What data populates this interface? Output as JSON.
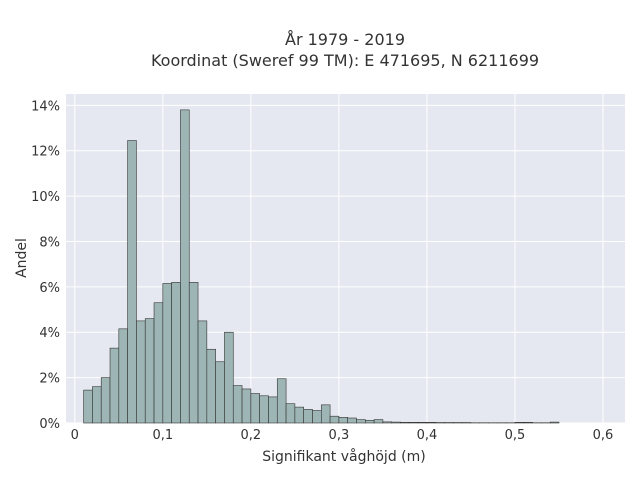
{
  "chart_data": {
    "type": "bar",
    "title_line1": "År 1979 - 2019",
    "title_line2": "Koordinat (Sweref 99 TM): E 471695, N 6211699",
    "xlabel": "Signifikant våghöjd (m)",
    "ylabel": "Andel",
    "xlim": [
      -0.01,
      0.625
    ],
    "ylim": [
      0,
      14.5
    ],
    "x_ticks": [
      {
        "value": 0,
        "label": "0"
      },
      {
        "value": 0.1,
        "label": "0,1"
      },
      {
        "value": 0.2,
        "label": "0,2"
      },
      {
        "value": 0.3,
        "label": "0,3"
      },
      {
        "value": 0.4,
        "label": "0,4"
      },
      {
        "value": 0.5,
        "label": "0,5"
      },
      {
        "value": 0.6,
        "label": "0,6"
      }
    ],
    "y_ticks": [
      {
        "value": 0,
        "label": "0%"
      },
      {
        "value": 2,
        "label": "2%"
      },
      {
        "value": 4,
        "label": "4%"
      },
      {
        "value": 6,
        "label": "6%"
      },
      {
        "value": 8,
        "label": "8%"
      },
      {
        "value": 10,
        "label": "10%"
      },
      {
        "value": 12,
        "label": "12%"
      },
      {
        "value": 14,
        "label": "14%"
      }
    ],
    "grid": true,
    "bar_color": "#9db5b4",
    "bar_edge_color": "#333333",
    "bin_width": 0.01,
    "bin_starts": [
      0.01,
      0.02,
      0.03,
      0.04,
      0.05,
      0.06,
      0.07,
      0.08,
      0.09,
      0.1,
      0.11,
      0.12,
      0.13,
      0.14,
      0.15,
      0.16,
      0.17,
      0.18,
      0.19,
      0.2,
      0.21,
      0.22,
      0.23,
      0.24,
      0.25,
      0.26,
      0.27,
      0.28,
      0.29,
      0.3,
      0.31,
      0.32,
      0.33,
      0.34,
      0.35,
      0.36,
      0.37,
      0.38,
      0.39,
      0.4,
      0.41,
      0.42,
      0.43,
      0.44,
      0.45,
      0.46,
      0.47,
      0.48,
      0.49,
      0.5,
      0.51,
      0.52,
      0.53,
      0.54
    ],
    "values": [
      1.45,
      1.6,
      2.0,
      3.3,
      4.15,
      12.45,
      4.5,
      4.6,
      5.3,
      6.15,
      6.2,
      13.8,
      6.2,
      4.5,
      3.25,
      2.7,
      4.0,
      1.65,
      1.5,
      1.3,
      1.2,
      1.15,
      1.95,
      0.85,
      0.7,
      0.6,
      0.55,
      0.8,
      0.3,
      0.25,
      0.22,
      0.15,
      0.12,
      0.15,
      0.05,
      0.04,
      0.03,
      0.03,
      0.03,
      0.03,
      0.02,
      0.02,
      0.02,
      0.02,
      0.01,
      0.01,
      0.01,
      0.01,
      0.01,
      0.03,
      0.03,
      0.01,
      0.01,
      0.04
    ]
  }
}
